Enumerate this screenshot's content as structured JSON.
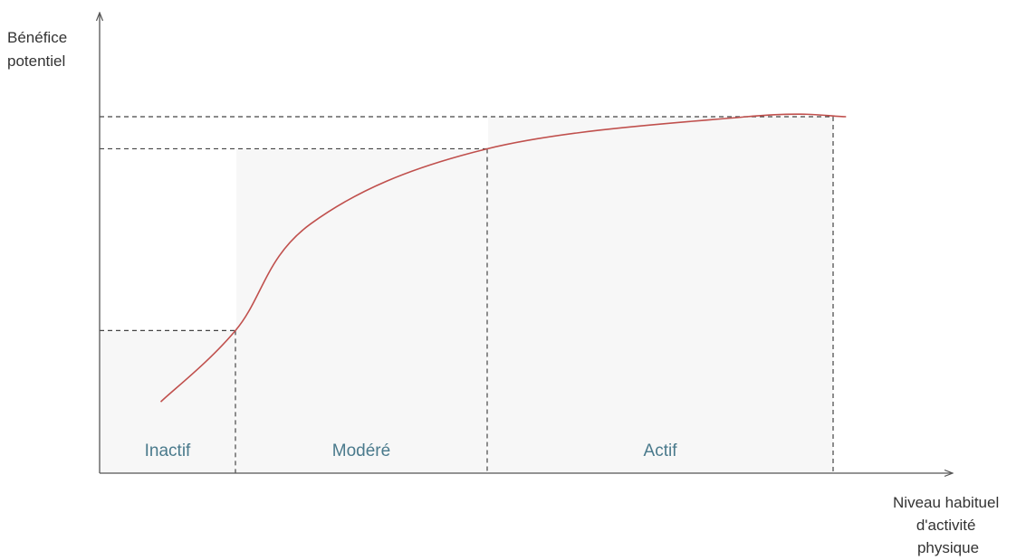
{
  "chart_data": {
    "type": "line",
    "ylabel": [
      "Bénéfice",
      "potentiel"
    ],
    "xlabel": [
      "Niveau habituel",
      "d'activité",
      "physique"
    ],
    "zones": [
      {
        "label": "Inactif",
        "x_from": 0,
        "x_to": 1
      },
      {
        "label": "Modéré",
        "x_from": 1,
        "x_to": 2
      },
      {
        "label": "Actif",
        "x_from": 2,
        "x_to": 3
      }
    ],
    "curve": [
      {
        "x": 0.45,
        "y": 0.2
      },
      {
        "x": 1.0,
        "y": 0.4
      },
      {
        "x": 1.3,
        "y": 0.7
      },
      {
        "x": 2.0,
        "y": 0.91
      },
      {
        "x": 2.75,
        "y": 1.0
      },
      {
        "x": 3.1,
        "y": 1.0
      }
    ],
    "reference_points": [
      {
        "x": 1.0,
        "y": 0.4
      },
      {
        "x": 2.0,
        "y": 0.91
      },
      {
        "x": 3.0,
        "y": 1.0
      }
    ],
    "colors": {
      "curve": "#c0504d",
      "zone_label": "#4a7a8c",
      "axis": "#555555",
      "dashes": "#444444",
      "shading": "#f7f7f7"
    },
    "grid": false,
    "legend": "none"
  }
}
